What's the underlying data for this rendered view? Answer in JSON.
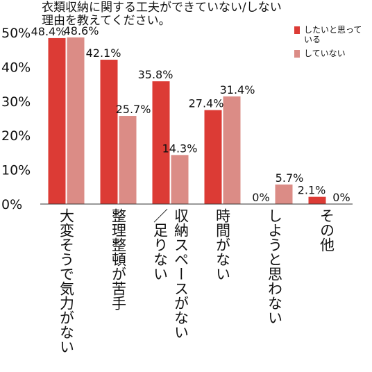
{
  "chart_data": {
    "type": "bar",
    "title_lines": [
      "衣類収納に関する工夫ができていない/しない",
      "理由を教えてください。"
    ],
    "categories": [
      [
        "大変そうで気力がない"
      ],
      [
        "整理整頓が苦手"
      ],
      [
        "収納スペースがない",
        "／足りない"
      ],
      [
        "時間がない"
      ],
      [
        "しようと思わない"
      ],
      [
        "その他"
      ]
    ],
    "series": [
      {
        "name": "したいと思っている",
        "color": "#dc3b35",
        "values": [
          48.4,
          42.1,
          35.8,
          27.4,
          0,
          2.1
        ],
        "labels": [
          "48.4%",
          "42.1%",
          "35.8%",
          "27.4%",
          "0%",
          "2.1%"
        ]
      },
      {
        "name": "していない",
        "color": "#db8c86",
        "values": [
          48.6,
          25.7,
          14.3,
          31.4,
          5.7,
          0
        ],
        "labels": [
          "48.6%",
          "25.7%",
          "14.3%",
          "31.4%",
          "5.7%",
          "0%"
        ]
      }
    ],
    "y_ticks": [
      0,
      10,
      20,
      30,
      40,
      50
    ],
    "y_tick_labels": [
      "0%",
      "10%",
      "20%",
      "30%",
      "40%",
      "50%"
    ],
    "ylim": [
      0,
      50
    ],
    "grid": false,
    "legend_position": "top-right"
  }
}
